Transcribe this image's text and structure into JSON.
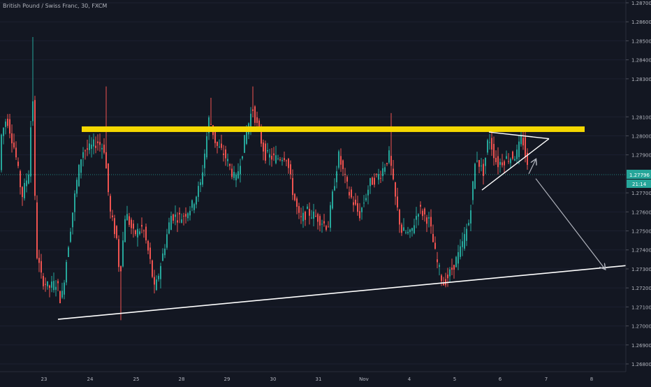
{
  "header": {
    "title": "British Pound / Swiss Franc, 30, FXCM"
  },
  "colors": {
    "background": "#131722",
    "up": "#26a69a",
    "down": "#ef5350",
    "resistance": "#f5d800",
    "trendline": "#ffffff",
    "arrow": "#b2b5be",
    "price_line": "#26a69a",
    "axis_text": "#b2b5be"
  },
  "chart_data": {
    "type": "candlestick",
    "title": "British Pound / Swiss Franc, 30, FXCM",
    "ylim": [
      1.2675,
      1.287
    ],
    "y_ticks": [
      "1.28700",
      "1.28600",
      "1.28500",
      "1.28400",
      "1.28300",
      "1.28100",
      "1.28000",
      "1.27900",
      "1.27700",
      "1.27600",
      "1.27500",
      "1.27400",
      "1.27300",
      "1.27200",
      "1.27100",
      "1.27000",
      "1.26900",
      "1.26800"
    ],
    "x_labels": [
      "23",
      "24",
      "25",
      "28",
      "29",
      "30",
      "31",
      "Nov",
      "4",
      "5",
      "6",
      "7",
      "8"
    ],
    "last_price": {
      "label": "1.27796",
      "value": 1.27796
    },
    "countdown": "21:14",
    "annotations": {
      "resistance_level": 1.28035,
      "support_trendline": {
        "from": [
          "23",
          1.27035
        ],
        "to": [
          "8",
          1.2731
        ]
      },
      "triangle": {
        "apex": [
          "7",
          1.27985
        ]
      },
      "projection_arrow": {
        "from": [
          "7",
          1.27775
        ],
        "to": [
          "8",
          1.273
        ]
      }
    }
  }
}
